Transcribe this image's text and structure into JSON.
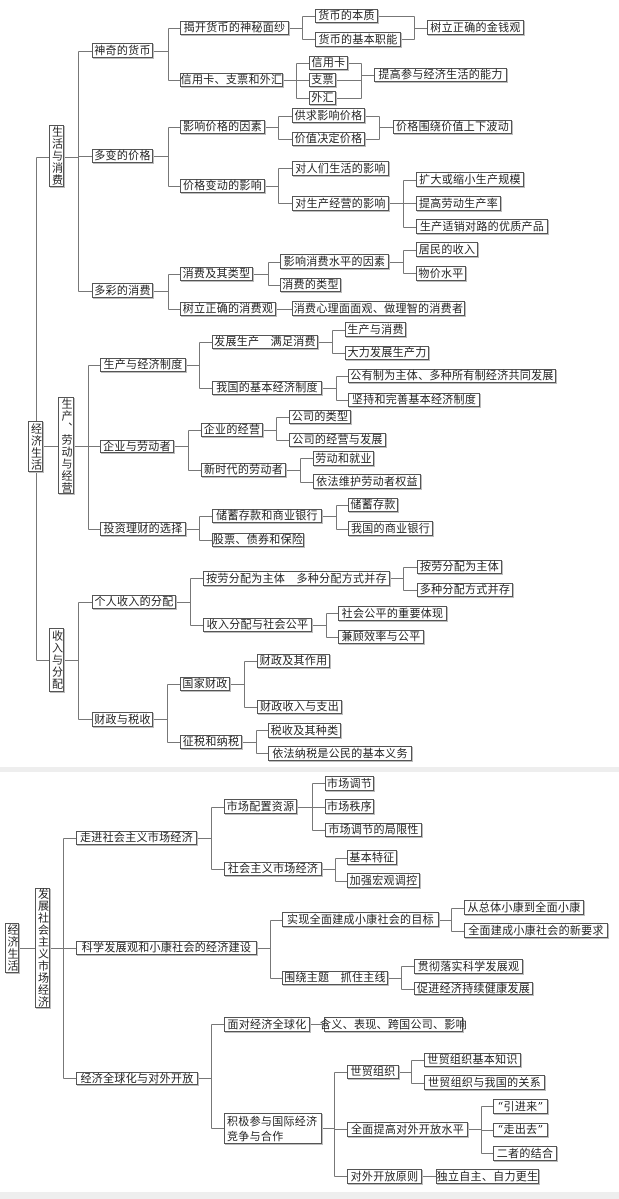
{
  "top_map": {
    "root": "经济生活",
    "u1": "生活与消费",
    "u2": "生产、劳动与经营",
    "u3": "收入与分配",
    "a1": "神奇的货币",
    "a2": "多变的价格",
    "a3": "多彩的消费",
    "b1": "揭开货币的神秘面纱",
    "b2": "信用卡、支票和外汇",
    "c1": "货币的本质",
    "c2": "货币的基本职能",
    "d1": "树立正确的金钱观",
    "c3": "信用卡",
    "c4": "支票",
    "c5": "外汇",
    "d2": "提高参与经济生活的能力",
    "b3": "影响价格的因素",
    "b4": "价格变动的影响",
    "c6": "供求影响价格",
    "c7": "价值决定价格",
    "d3": "价格围绕价值上下波动",
    "c8": "对人们生活的影响",
    "c9": "对生产经营的影响",
    "d4": "扩大或缩小生产规模",
    "d5": "提高劳动生产率",
    "d6": "生产适销对路的优质产品",
    "b5": "消费及其类型",
    "b6": "树立正确的消费观",
    "c10": "影响消费水平的因素",
    "c11": "消费的类型",
    "d7": "居民的收入",
    "d8": "物价水平",
    "c12": "消费心理面面观、做理智的消费者",
    "a4": "生产与经济制度",
    "a5": "企业与劳动者",
    "a6": "投资理财的选择",
    "b7": "发展生产　满足消费",
    "b8": "我国的基本经济制度",
    "c13": "生产与消费",
    "c14": "大力发展生产力",
    "c15": "公有制为主体、多种所有制经济共同发展",
    "c16": "坚持和完善基本经济制度",
    "b9": "企业的经营",
    "b10": "新时代的劳动者",
    "c17": "公司的类型",
    "c18": "公司的经营与发展",
    "c19": "劳动和就业",
    "c20": "依法维护劳动者权益",
    "b11": "储蓄存款和商业银行",
    "b12": "股票、债券和保险",
    "c21": "储蓄存款",
    "c22": "我国的商业银行",
    "a7": "个人收入的分配",
    "a8": "财政与税收",
    "b13": "按劳分配为主体　多种分配方式并存",
    "b14": "收入分配与社会公平",
    "c23": "按劳分配为主体",
    "c24": "多种分配方式并存",
    "c25": "社会公平的重要体现",
    "c26": "兼顾效率与公平",
    "b15": "国家财政",
    "b16": "征税和纳税",
    "c27": "财政及其作用",
    "c28": "财政收入与支出",
    "c29": "税收及其种类",
    "c30": "依法纳税是公民的基本义务"
  },
  "bottom_map": {
    "root": "经济生活",
    "u4": "发展社会主义市场经济",
    "e1": "走进社会主义市场经济",
    "e2": "科学发展观和小康社会的经济建设",
    "e3": "经济全球化与对外开放",
    "f1": "市场配置资源",
    "f2": "社会主义市场经济",
    "g1": "市场调节",
    "g2": "市场秩序",
    "g3": "市场调节的局限性",
    "g4": "基本特征",
    "g5": "加强宏观调控",
    "f3": "实现全面建成小康社会的目标",
    "f4": "围绕主题　抓住主线",
    "g6": "从总体小康到全面小康",
    "g7": "全面建成小康社会的新要求",
    "g8": "贯彻落实科学发展观",
    "g9": "促进经济持续健康发展",
    "f5": "面对经济全球化",
    "f6": "积极参与国际经济竞争与合作",
    "g10": "含义、表现、跨国公司、影响",
    "g11": "世贸组织",
    "g12": "全面提高对外开放水平",
    "g13": "对外开放原则",
    "h1": "世贸组织基本知识",
    "h2": "世贸组织与我国的关系",
    "h3": "“引进来”",
    "h4": "“走出去”",
    "h5": "二者的结合",
    "h6": "独立自主、自力更生"
  }
}
